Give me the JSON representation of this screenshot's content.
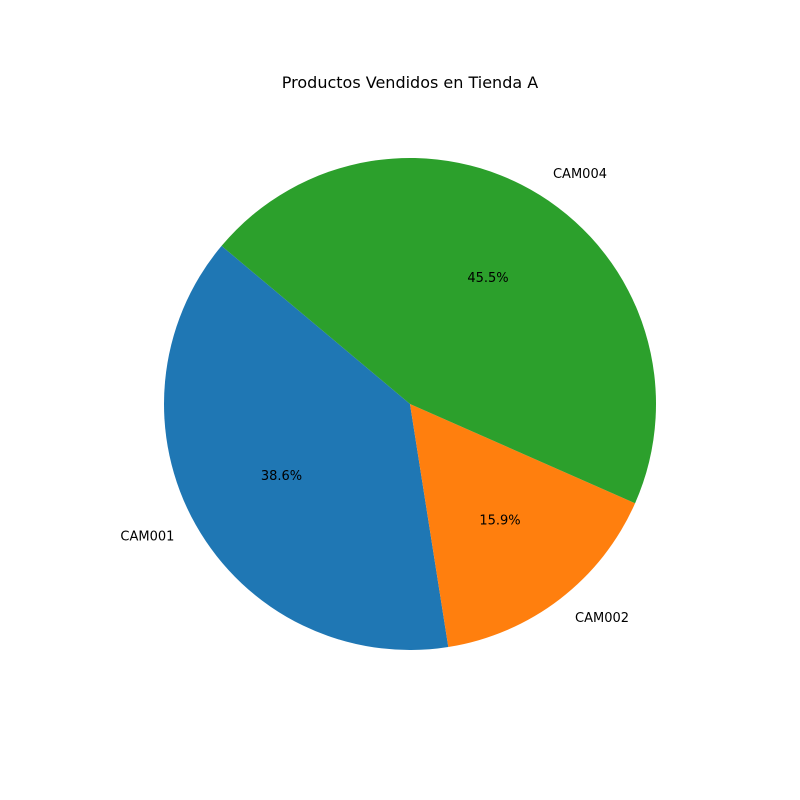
{
  "chart_data": {
    "type": "pie",
    "title": "Productos Vendidos en Tienda A",
    "categories": [
      "CAM001",
      "CAM002",
      "CAM004"
    ],
    "values": [
      38.6,
      15.9,
      45.5
    ],
    "percent_labels": [
      "38.6%",
      "15.9%",
      "45.5%"
    ],
    "colors": [
      "#1f77b4",
      "#ff7f0e",
      "#2ca02c"
    ],
    "start_angle_deg": 140,
    "direction": "counterclockwise",
    "legend": "none"
  }
}
